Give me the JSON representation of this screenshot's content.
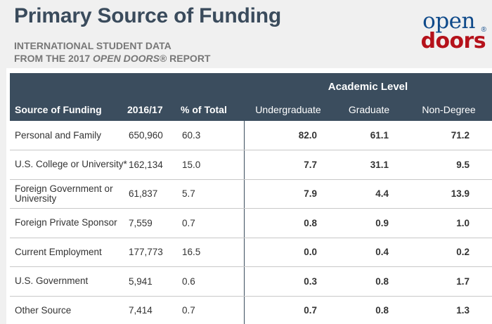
{
  "header": {
    "title": "Primary Source of Funding",
    "subtitle_line1": "INTERNATIONAL STUDENT DATA",
    "subtitle_line2_prefix": "FROM THE 2017 ",
    "subtitle_line2_em": "OPEN DOORS",
    "subtitle_line2_suffix": "® REPORT"
  },
  "logo": {
    "top": "open",
    "bottom": "doors",
    "mark": "®",
    "colors": {
      "open": "#0f4a8a",
      "doors": "#b5121b"
    }
  },
  "table": {
    "group_header": "Academic Level",
    "columns": [
      "Source of Funding",
      "2016/17",
      "% of Total",
      "Undergraduate",
      "Graduate",
      "Non-Degree"
    ],
    "rows": [
      {
        "source": "Personal and Family",
        "count": "650,960",
        "pct": "60.3",
        "ug": "82.0",
        "grad": "61.1",
        "nd": "71.2"
      },
      {
        "source": "U.S. College or University*",
        "count": "162,134",
        "pct": "15.0",
        "ug": "7.7",
        "grad": "31.1",
        "nd": "9.5"
      },
      {
        "source": "Foreign Government or University",
        "count": "61,837",
        "pct": "5.7",
        "ug": "7.9",
        "grad": "4.4",
        "nd": "13.9"
      },
      {
        "source": "Foreign Private Sponsor",
        "count": "7,559",
        "pct": "0.7",
        "ug": "0.8",
        "grad": "0.9",
        "nd": "1.0"
      },
      {
        "source": "Current Employment",
        "count": "177,773",
        "pct": "16.5",
        "ug": "0.0",
        "grad": "0.4",
        "nd": "0.2"
      },
      {
        "source": "U.S. Government",
        "count": "5,941",
        "pct": "0.6",
        "ug": "0.3",
        "grad": "0.8",
        "nd": "1.7"
      },
      {
        "source": "Other Source",
        "count": "7,414",
        "pct": "0.7",
        "ug": "0.7",
        "grad": "0.8",
        "nd": "1.3"
      }
    ],
    "colors": {
      "header_bg": "#3b4d5e",
      "title": "#3a4b5c"
    }
  }
}
